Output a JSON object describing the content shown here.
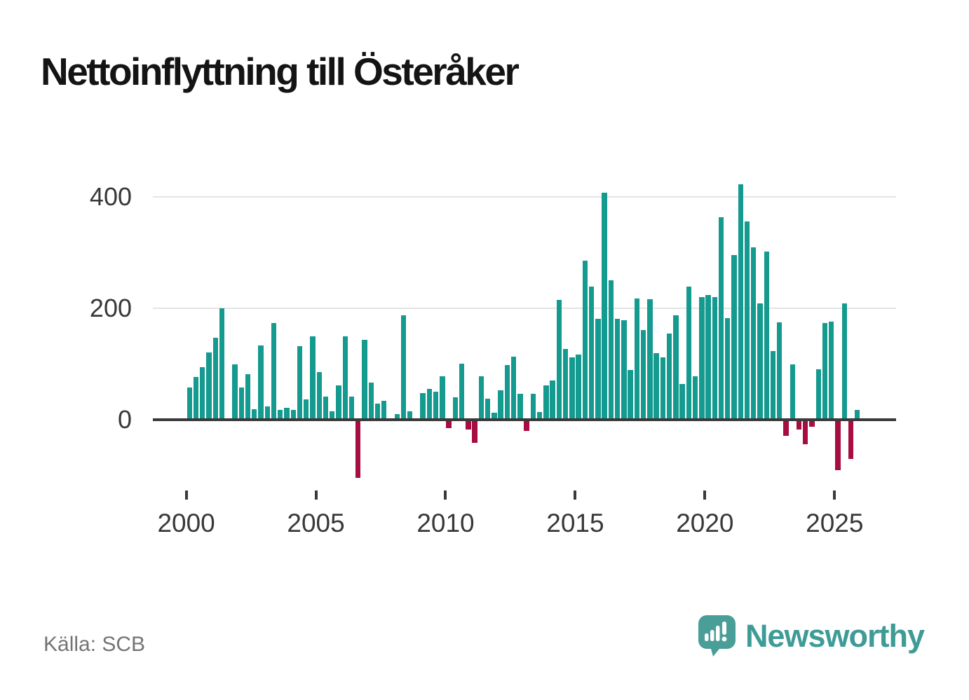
{
  "title": "Nettoinflyttning till Österåker",
  "source": "Källa: SCB",
  "branding": {
    "logo_text": "Newsworthy",
    "logo_icon": "bar-chart-speech-bubble-icon"
  },
  "colors": {
    "positive": "#149a8f",
    "negative": "#a60d40",
    "grid": "#e4e4e4",
    "axis": "#3a3a3a",
    "title": "#141414",
    "tick_label": "#383838",
    "source_text": "#747474",
    "logo": "#3e9b95"
  },
  "chart_data": {
    "type": "bar",
    "title": "Nettoinflyttning till Österåker",
    "x_start_year": 2000,
    "x_period": "quarter",
    "values": [
      58,
      77,
      94,
      121,
      147,
      200,
      0,
      100,
      58,
      82,
      19,
      133,
      24,
      174,
      18,
      21,
      17,
      132,
      36,
      150,
      85,
      41,
      15,
      62,
      150,
      41,
      -105,
      144,
      67,
      29,
      34,
      0,
      10,
      188,
      15,
      0,
      48,
      55,
      50,
      78,
      -15,
      40,
      101,
      -17,
      -41,
      78,
      38,
      13,
      53,
      98,
      113,
      47,
      -20,
      46,
      14,
      62,
      70,
      215,
      127,
      112,
      117,
      285,
      239,
      181,
      408,
      250,
      181,
      178,
      89,
      218,
      161,
      216,
      120,
      112,
      155,
      188,
      64,
      239,
      78,
      220,
      224,
      220,
      363,
      182,
      296,
      423,
      356,
      310,
      209,
      302,
      123,
      175,
      -29,
      99,
      -18,
      -44,
      -13,
      90,
      173,
      176,
      -90,
      209,
      -70,
      17
    ],
    "yticks": [
      0,
      200,
      400
    ],
    "ytick_labels": [
      "0",
      "200",
      "400"
    ],
    "xticks": [
      2000,
      2005,
      2010,
      2015,
      2020,
      2025
    ],
    "xtick_labels": [
      "2000",
      "2005",
      "2010",
      "2015",
      "2020",
      "2025"
    ],
    "ylim": [
      -120,
      440
    ],
    "grid": "horizontal-only",
    "legend": "none",
    "bar_positive_color": "#149a8f",
    "bar_negative_color": "#a60d40"
  }
}
